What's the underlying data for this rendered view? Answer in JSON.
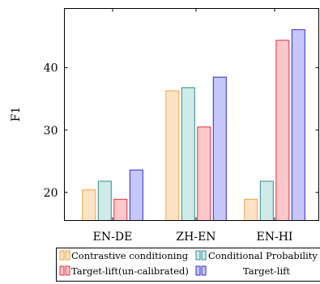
{
  "chart_data": {
    "type": "bar",
    "title": "",
    "xlabel": "",
    "ylabel": "F1",
    "categories": [
      "EN-DE",
      "ZH-EN",
      "EN-HI"
    ],
    "yticks": [
      20,
      30,
      40
    ],
    "ylim": [
      15.5,
      49.5
    ],
    "grid": false,
    "legend_position": "bottom",
    "series": [
      {
        "name": "Contrastive conditioning",
        "values": [
          20.4,
          36.3,
          18.9
        ],
        "stroke": "#f2a23a",
        "fill": "#fde3c6"
      },
      {
        "name": "Conditional Probability",
        "values": [
          21.8,
          36.8,
          21.8
        ],
        "stroke": "#2e8f8f",
        "fill": "#cfeae7"
      },
      {
        "name": "Target-lift(un-calibrated)",
        "values": [
          18.9,
          30.5,
          44.4
        ],
        "stroke": "#e0303b",
        "fill": "#fcc8cb"
      },
      {
        "name": "Target-lift",
        "values": [
          23.6,
          38.5,
          46.1
        ],
        "stroke": "#2b2bd6",
        "fill": "#c7c7fb"
      }
    ]
  }
}
